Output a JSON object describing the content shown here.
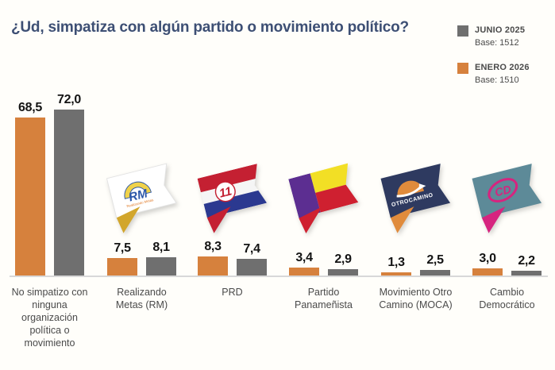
{
  "title": "¿Ud, simpatiza con algún partido o movimiento político?",
  "colors": {
    "title": "#3d4f74",
    "enero_bar": "#d6813d",
    "junio_bar": "#6f6f6f",
    "baseline": "#d8d8d8",
    "background": "#fffefa",
    "value_text": "#141414",
    "category_text": "#4a4a4a"
  },
  "legend": {
    "items": [
      {
        "label": "JUNIO 2025",
        "base": "Base: 1512",
        "color": "#6f6f6f"
      },
      {
        "label": "ENERO 2026",
        "base": "Base: 1510",
        "color": "#d6813d"
      }
    ]
  },
  "chart_data": {
    "type": "bar",
    "unit": "percent",
    "title": "¿Ud, simpatiza con algún partido o movimiento político?",
    "categories": [
      "No simpatizo con ninguna organización política o movimiento",
      "Realizando Metas (RM)",
      "PRD",
      "Partido Panameñista",
      "Movimiento Otro Camino (MOCA)",
      "Cambio Democrático"
    ],
    "series": [
      {
        "name": "ENERO 2026",
        "color": "#d6813d",
        "values": [
          68.5,
          7.5,
          8.3,
          3.4,
          1.3,
          3.0
        ]
      },
      {
        "name": "JUNIO 2025",
        "color": "#6f6f6f",
        "values": [
          72.0,
          8.1,
          7.4,
          2.9,
          2.5,
          2.2
        ]
      }
    ],
    "value_labels": [
      [
        "68,5",
        "72,0"
      ],
      [
        "7,5",
        "8,1"
      ],
      [
        "8,3",
        "7,4"
      ],
      [
        "3,4",
        "2,9"
      ],
      [
        "1,3",
        "2,5"
      ],
      [
        "3,0",
        "2,2"
      ]
    ],
    "ylim": [
      0,
      75
    ],
    "grid": false,
    "legend_position": "top-right",
    "logos": [
      "",
      "rm",
      "prd",
      "panamenista",
      "moca",
      "cd"
    ]
  },
  "flags": {
    "rm": {
      "text": "RM",
      "subtext": "Realizando Metas"
    },
    "prd": {
      "text": "11"
    },
    "moca": {
      "text": "OTROCAMINO"
    },
    "cd": {
      "text": "CD"
    }
  }
}
